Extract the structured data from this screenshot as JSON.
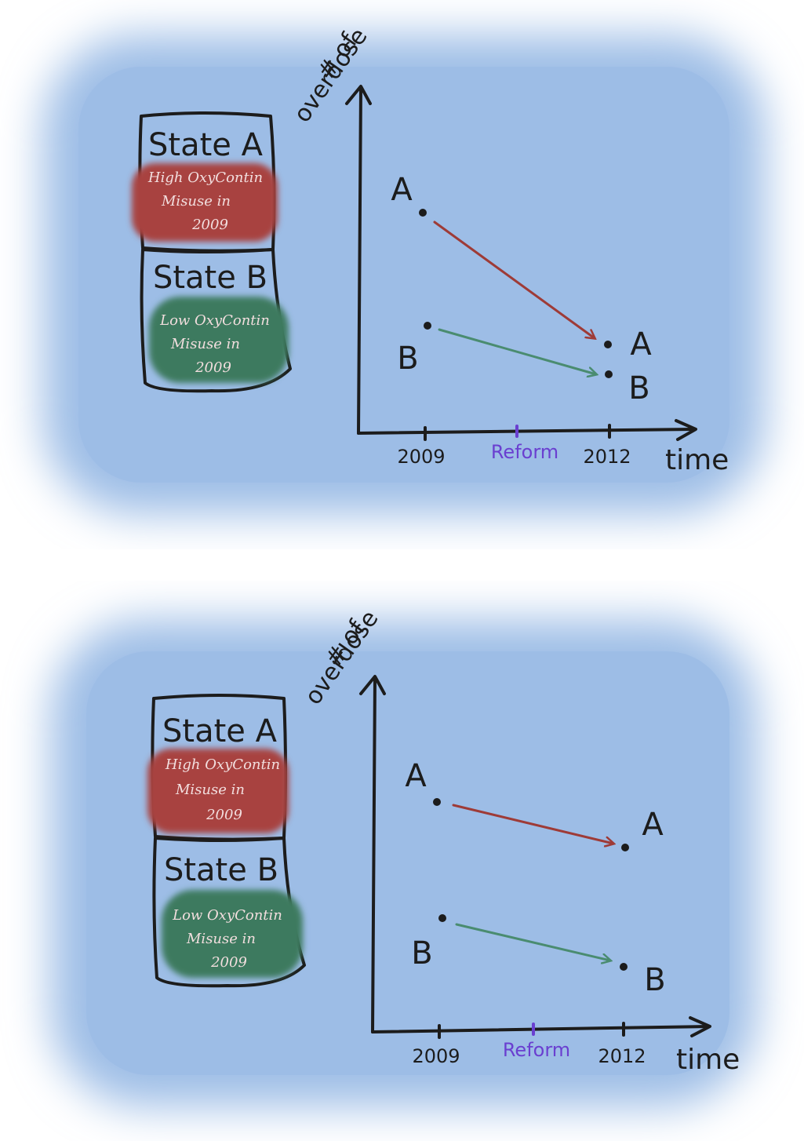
{
  "panels": [
    {
      "y_axis_label_line1": "# of",
      "y_axis_label_line2": "overdose",
      "x_axis_label": "time",
      "tick_2009": "2009",
      "tick_reform": "Reform",
      "tick_2012": "2012",
      "state_a": {
        "title": "State A",
        "note_line1": "High OxyContin",
        "note_line2": "Misuse in",
        "note_line3": "2009"
      },
      "state_b": {
        "title": "State B",
        "note_line1": "Low OxyContin",
        "note_line2": "Misuse in",
        "note_line3": "2009"
      },
      "point_labels": {
        "a_start": "A",
        "b_start": "B",
        "a_end": "A",
        "b_end": "B"
      }
    },
    {
      "y_axis_label_line1": "# of",
      "y_axis_label_line2": "overdose",
      "x_axis_label": "time",
      "tick_2009": "2009",
      "tick_reform": "Reform",
      "tick_2012": "2012",
      "state_a": {
        "title": "State A",
        "note_line1": "High OxyContin",
        "note_line2": "Misuse in",
        "note_line3": "2009"
      },
      "state_b": {
        "title": "State B",
        "note_line1": "Low OxyContin",
        "note_line2": "Misuse in",
        "note_line3": "2009"
      },
      "point_labels": {
        "a_start": "A",
        "b_start": "B",
        "a_end": "A",
        "b_end": "B"
      }
    }
  ],
  "colors": {
    "background_blue": "#9dbde6",
    "state_a_red": "#a8433f",
    "state_b_green": "#3d7a5e",
    "arrow_red": "#9e3b37",
    "arrow_green": "#4a8c70",
    "reform_purple": "#6a3fd0",
    "note_text": "#f2dede"
  }
}
